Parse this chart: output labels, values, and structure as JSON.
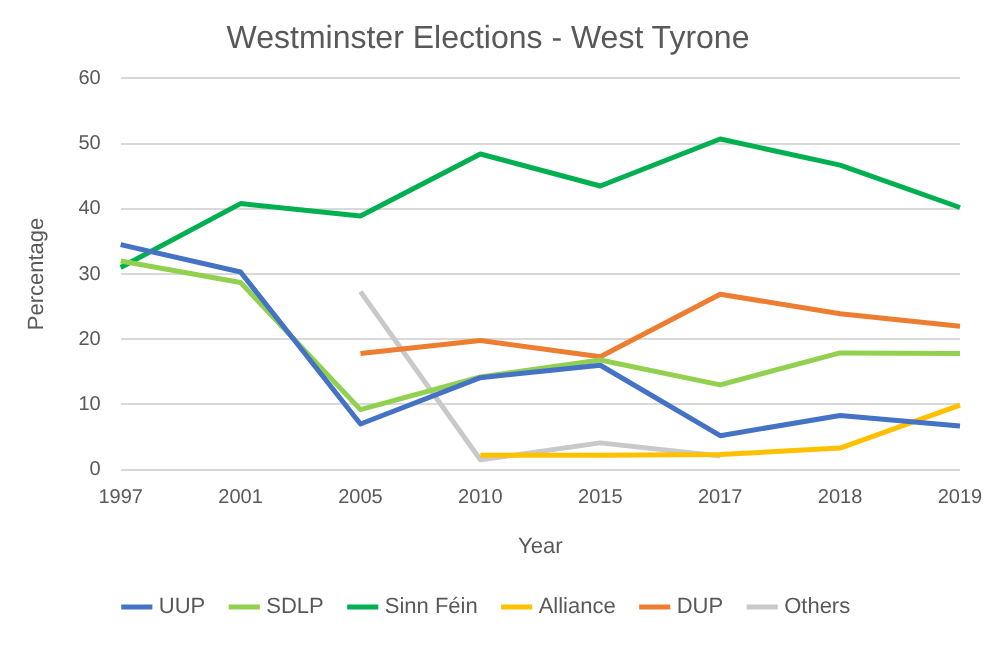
{
  "chart_data": {
    "type": "line",
    "title": "Westminster Elections - West Tyrone",
    "xlabel": "Year",
    "ylabel": "Percentage",
    "categories": [
      "1997",
      "2001",
      "2005",
      "2010",
      "2015",
      "2017",
      "2018",
      "2019"
    ],
    "series": [
      {
        "name": "UUP",
        "color": "#4472c4",
        "values": [
          34.5,
          30.3,
          7,
          14.1,
          16,
          5.2,
          8.3,
          6.7
        ]
      },
      {
        "name": "SDLP",
        "color": "#92d050",
        "values": [
          32,
          28.7,
          9.2,
          14.2,
          16.8,
          13,
          17.9,
          17.8
        ]
      },
      {
        "name": "Sinn Féin",
        "color": "#00b050",
        "values": [
          31,
          40.8,
          38.9,
          48.4,
          43.5,
          50.7,
          46.7,
          40.2
        ]
      },
      {
        "name": "Alliance",
        "color": "#ffc000",
        "values": [
          null,
          null,
          null,
          2.2,
          2.2,
          2.3,
          3.3,
          9.9
        ]
      },
      {
        "name": "DUP",
        "color": "#ed7d31",
        "values": [
          null,
          null,
          17.8,
          19.8,
          17.3,
          26.9,
          23.9,
          22
        ]
      },
      {
        "name": "Others",
        "color": "#c9c9c9",
        "values": [
          null,
          null,
          27.3,
          1.5,
          4.1,
          2.1,
          null,
          null
        ]
      }
    ],
    "ylim": [
      0,
      60
    ],
    "yticks": [
      0,
      10,
      20,
      30,
      40,
      50,
      60
    ],
    "grid": "y",
    "legend": "bottom",
    "marker": "none",
    "line_style": "solid"
  }
}
